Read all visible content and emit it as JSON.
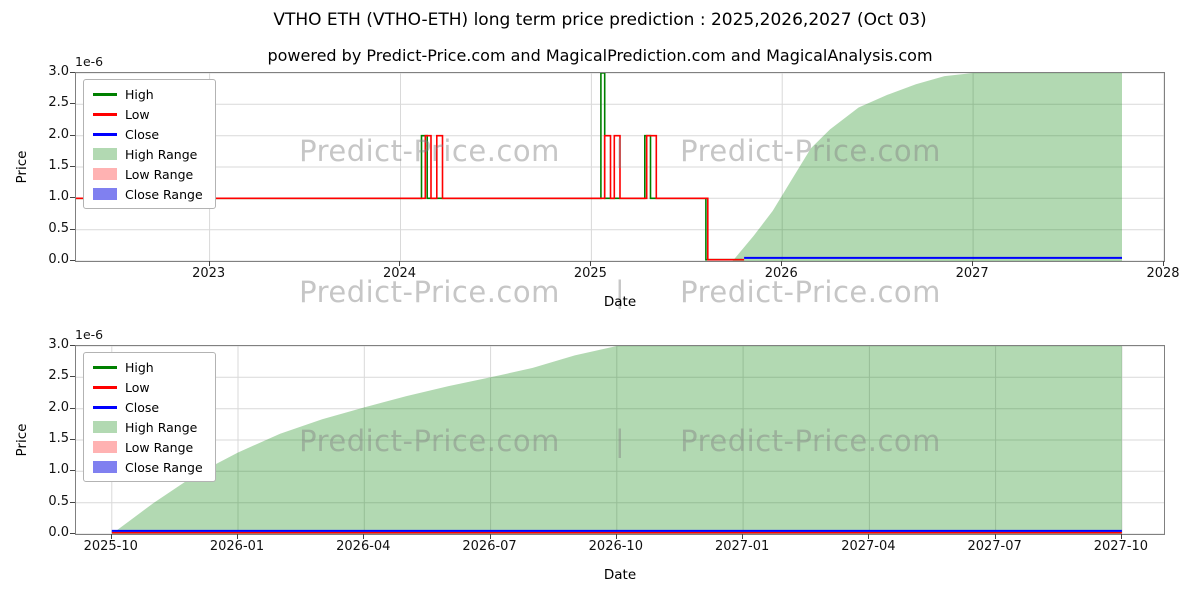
{
  "figure": {
    "watermark_text": "Predict-Price.com",
    "watermark_separator": "|"
  },
  "legend": {
    "items": [
      {
        "label": "High",
        "swatch": "line",
        "color": "#008000"
      },
      {
        "label": "Low",
        "swatch": "line",
        "color": "#ff0000"
      },
      {
        "label": "Close",
        "swatch": "line",
        "color": "#0000ff"
      },
      {
        "label": "High Range",
        "swatch": "patch",
        "color": "#b2d9b2"
      },
      {
        "label": "Low Range",
        "swatch": "patch",
        "color": "#ffb2b2"
      },
      {
        "label": "Close Range",
        "swatch": "patch",
        "color": "#8080f0"
      }
    ]
  },
  "chart_data": [
    {
      "type": "line",
      "title": "VTHO ETH (VTHO-ETH) long term price prediction : 2025,2026,2027 (Oct 03)",
      "subtitle": "powered by Predict-Price.com and MagicalPrediction.com and MagicalAnalysis.com",
      "xlabel": "Date",
      "ylabel": "Price",
      "y_scale_note": "1e-6",
      "grid": true,
      "legend_position": "upper left",
      "xlim": [
        2022.3,
        2028.0
      ],
      "ylim": [
        0,
        3.0
      ],
      "yticks": [
        {
          "v": 0.0,
          "label": "0.0"
        },
        {
          "v": 0.5,
          "label": "0.5"
        },
        {
          "v": 1.0,
          "label": "1.0"
        },
        {
          "v": 1.5,
          "label": "1.5"
        },
        {
          "v": 2.0,
          "label": "2.0"
        },
        {
          "v": 2.5,
          "label": "2.5"
        },
        {
          "v": 3.0,
          "label": "3.0"
        }
      ],
      "xticks": [
        {
          "v": 2023,
          "label": "2023"
        },
        {
          "v": 2024,
          "label": "2024"
        },
        {
          "v": 2025,
          "label": "2025"
        },
        {
          "v": 2026,
          "label": "2026"
        },
        {
          "v": 2027,
          "label": "2027"
        },
        {
          "v": 2028,
          "label": "2028"
        }
      ],
      "series": [
        {
          "id": "high_range",
          "name": "High Range",
          "kind": "area",
          "color": "rgba(0,128,0,0.30)",
          "points": [
            [
              2025.74,
              0.0
            ],
            [
              2025.85,
              0.4
            ],
            [
              2025.95,
              0.8
            ],
            [
              2026.05,
              1.3
            ],
            [
              2026.15,
              1.8
            ],
            [
              2026.25,
              2.1
            ],
            [
              2026.4,
              2.45
            ],
            [
              2026.55,
              2.65
            ],
            [
              2026.7,
              2.82
            ],
            [
              2026.85,
              2.95
            ],
            [
              2027.0,
              3.0
            ],
            [
              2027.78,
              3.0
            ]
          ]
        },
        {
          "id": "high",
          "name": "High",
          "kind": "line",
          "color": "#008000",
          "width": 1.6,
          "points": [
            [
              2022.3,
              1
            ],
            [
              2024.11,
              1
            ],
            [
              2024.11,
              2
            ],
            [
              2024.14,
              2
            ],
            [
              2024.14,
              1
            ],
            [
              2025.05,
              1
            ],
            [
              2025.05,
              3
            ],
            [
              2025.07,
              3
            ],
            [
              2025.07,
              1
            ],
            [
              2025.28,
              1
            ],
            [
              2025.28,
              2
            ],
            [
              2025.31,
              2
            ],
            [
              2025.31,
              1
            ],
            [
              2025.6,
              1
            ],
            [
              2025.6,
              0.02
            ],
            [
              2025.79,
              0.02
            ]
          ]
        },
        {
          "id": "low",
          "name": "Low",
          "kind": "line",
          "color": "#ff0000",
          "width": 1.6,
          "points": [
            [
              2022.3,
              1
            ],
            [
              2024.13,
              1
            ],
            [
              2024.13,
              2
            ],
            [
              2024.16,
              2
            ],
            [
              2024.16,
              1
            ],
            [
              2024.19,
              1
            ],
            [
              2024.19,
              2
            ],
            [
              2024.22,
              2
            ],
            [
              2024.22,
              1
            ],
            [
              2025.07,
              1
            ],
            [
              2025.07,
              2
            ],
            [
              2025.1,
              2
            ],
            [
              2025.1,
              1
            ],
            [
              2025.12,
              1
            ],
            [
              2025.12,
              2
            ],
            [
              2025.15,
              2
            ],
            [
              2025.15,
              1
            ],
            [
              2025.29,
              1
            ],
            [
              2025.29,
              2
            ],
            [
              2025.34,
              2
            ],
            [
              2025.34,
              1
            ],
            [
              2025.61,
              1
            ],
            [
              2025.61,
              0.02
            ],
            [
              2025.8,
              0.02
            ]
          ]
        },
        {
          "id": "close",
          "name": "Close",
          "kind": "line",
          "color": "#0000ff",
          "width": 2,
          "points": [
            [
              2025.8,
              0.05
            ],
            [
              2027.78,
              0.05
            ]
          ]
        }
      ]
    },
    {
      "type": "line",
      "title": "",
      "xlabel": "Date",
      "ylabel": "Price",
      "y_scale_note": "1e-6",
      "grid": true,
      "legend_position": "upper left",
      "x_unit": "months from 2025-10",
      "xlim": [
        -0.85,
        25.0
      ],
      "ylim": [
        0,
        3.0
      ],
      "yticks": [
        {
          "v": 0.0,
          "label": "0.0"
        },
        {
          "v": 0.5,
          "label": "0.5"
        },
        {
          "v": 1.0,
          "label": "1.0"
        },
        {
          "v": 1.5,
          "label": "1.5"
        },
        {
          "v": 2.0,
          "label": "2.0"
        },
        {
          "v": 2.5,
          "label": "2.5"
        },
        {
          "v": 3.0,
          "label": "3.0"
        }
      ],
      "xticks": [
        {
          "v": 0,
          "label": "2025-10"
        },
        {
          "v": 3,
          "label": "2026-01"
        },
        {
          "v": 6,
          "label": "2026-04"
        },
        {
          "v": 9,
          "label": "2026-07"
        },
        {
          "v": 12,
          "label": "2026-10"
        },
        {
          "v": 15,
          "label": "2027-01"
        },
        {
          "v": 18,
          "label": "2027-04"
        },
        {
          "v": 21,
          "label": "2027-07"
        },
        {
          "v": 24,
          "label": "2027-10"
        }
      ],
      "series": [
        {
          "id": "high_range",
          "name": "High Range",
          "kind": "area",
          "color": "rgba(0,128,0,0.30)",
          "points": [
            [
              0,
              0
            ],
            [
              1,
              0.5
            ],
            [
              2,
              0.95
            ],
            [
              3,
              1.3
            ],
            [
              4,
              1.6
            ],
            [
              5,
              1.83
            ],
            [
              6,
              2.02
            ],
            [
              7,
              2.2
            ],
            [
              8,
              2.36
            ],
            [
              9,
              2.5
            ],
            [
              10,
              2.65
            ],
            [
              11,
              2.85
            ],
            [
              12,
              3.0
            ],
            [
              24,
              3.0
            ]
          ]
        },
        {
          "id": "low",
          "name": "Low",
          "kind": "line",
          "color": "#ff0000",
          "width": 1.6,
          "points": [
            [
              0,
              0.02
            ],
            [
              24,
              0.02
            ]
          ]
        },
        {
          "id": "close",
          "name": "Close",
          "kind": "line",
          "color": "#0000ff",
          "width": 2,
          "points": [
            [
              0,
              0.05
            ],
            [
              24,
              0.05
            ]
          ]
        }
      ]
    }
  ]
}
